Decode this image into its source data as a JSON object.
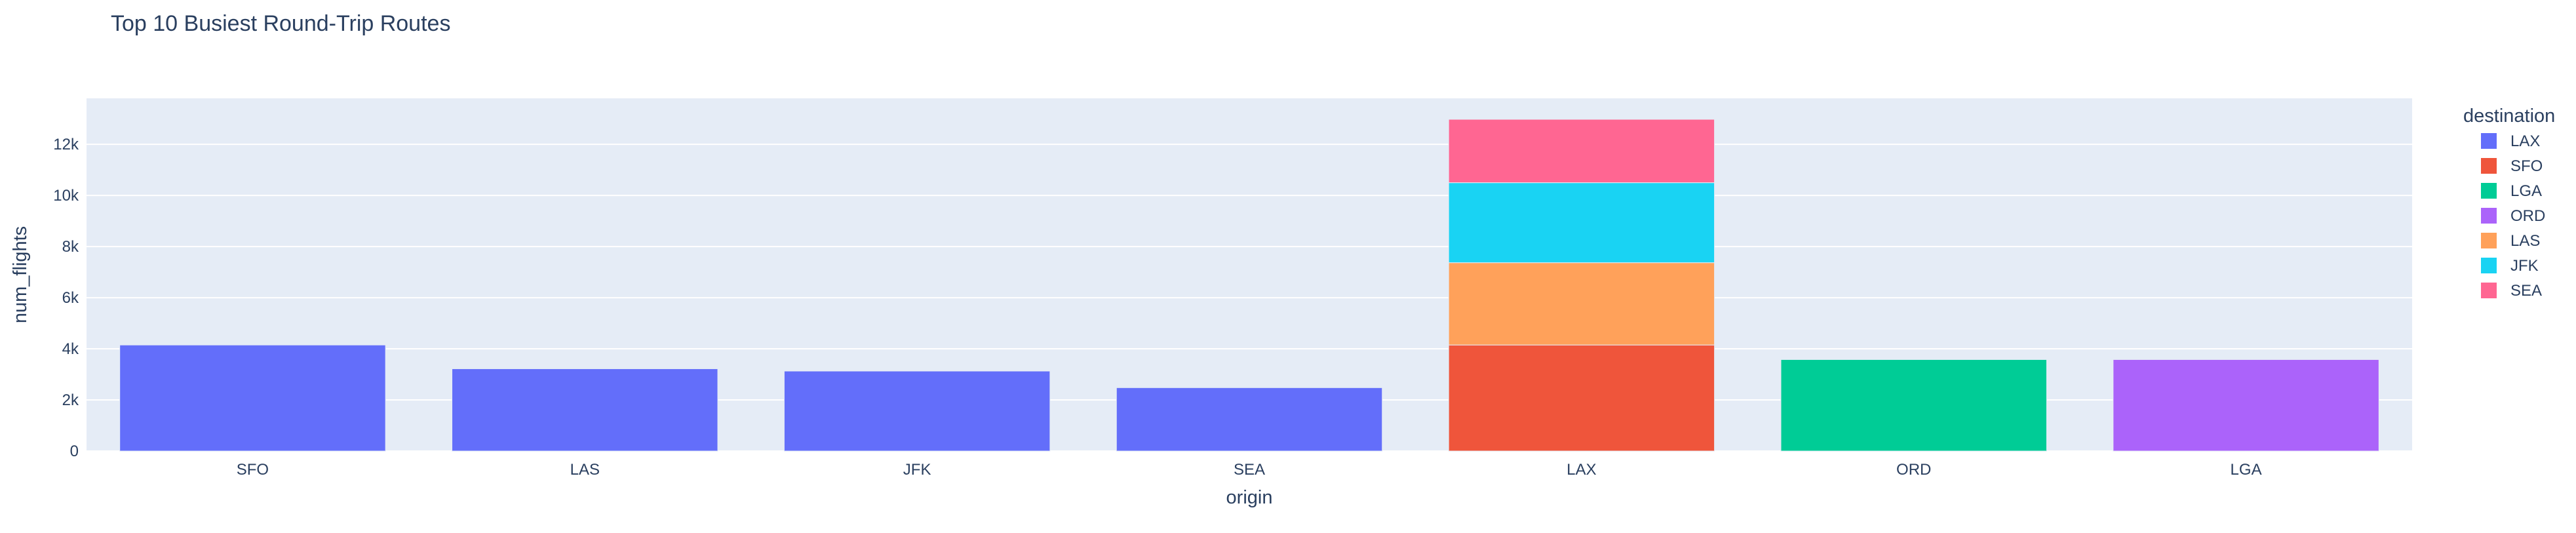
{
  "chart_data": {
    "type": "bar",
    "barmode": "stack",
    "title": "Top 10 Busiest Round-Trip Routes",
    "xlabel": "origin",
    "ylabel": "num_flights",
    "categories": [
      "SFO",
      "LAS",
      "JFK",
      "SEA",
      "LAX",
      "ORD",
      "LGA"
    ],
    "ylim": [
      0,
      13800
    ],
    "yticks": [
      {
        "value": 0,
        "label": "0"
      },
      {
        "value": 2000,
        "label": "2k"
      },
      {
        "value": 4000,
        "label": "4k"
      },
      {
        "value": 6000,
        "label": "6k"
      },
      {
        "value": 8000,
        "label": "8k"
      },
      {
        "value": 10000,
        "label": "10k"
      },
      {
        "value": 12000,
        "label": "12k"
      }
    ],
    "grid": true,
    "legend": {
      "title": "destination",
      "position": "right"
    },
    "series": [
      {
        "name": "LAX",
        "color": "#636efa",
        "values": [
          4150,
          3220,
          3130,
          2480,
          0,
          0,
          0
        ]
      },
      {
        "name": "SFO",
        "color": "#ef553b",
        "values": [
          0,
          0,
          0,
          0,
          4150,
          0,
          0
        ]
      },
      {
        "name": "LGA",
        "color": "#00cc96",
        "values": [
          0,
          0,
          0,
          0,
          0,
          3580,
          0
        ]
      },
      {
        "name": "ORD",
        "color": "#ab63fa",
        "values": [
          0,
          0,
          0,
          0,
          0,
          0,
          3580
        ]
      },
      {
        "name": "LAS",
        "color": "#ffa15a",
        "values": [
          0,
          0,
          0,
          0,
          3220,
          0,
          0
        ]
      },
      {
        "name": "JFK",
        "color": "#19d3f3",
        "values": [
          0,
          0,
          0,
          0,
          3130,
          0,
          0
        ]
      },
      {
        "name": "SEA",
        "color": "#ff6692",
        "values": [
          0,
          0,
          0,
          0,
          2480,
          0,
          0
        ]
      }
    ]
  }
}
